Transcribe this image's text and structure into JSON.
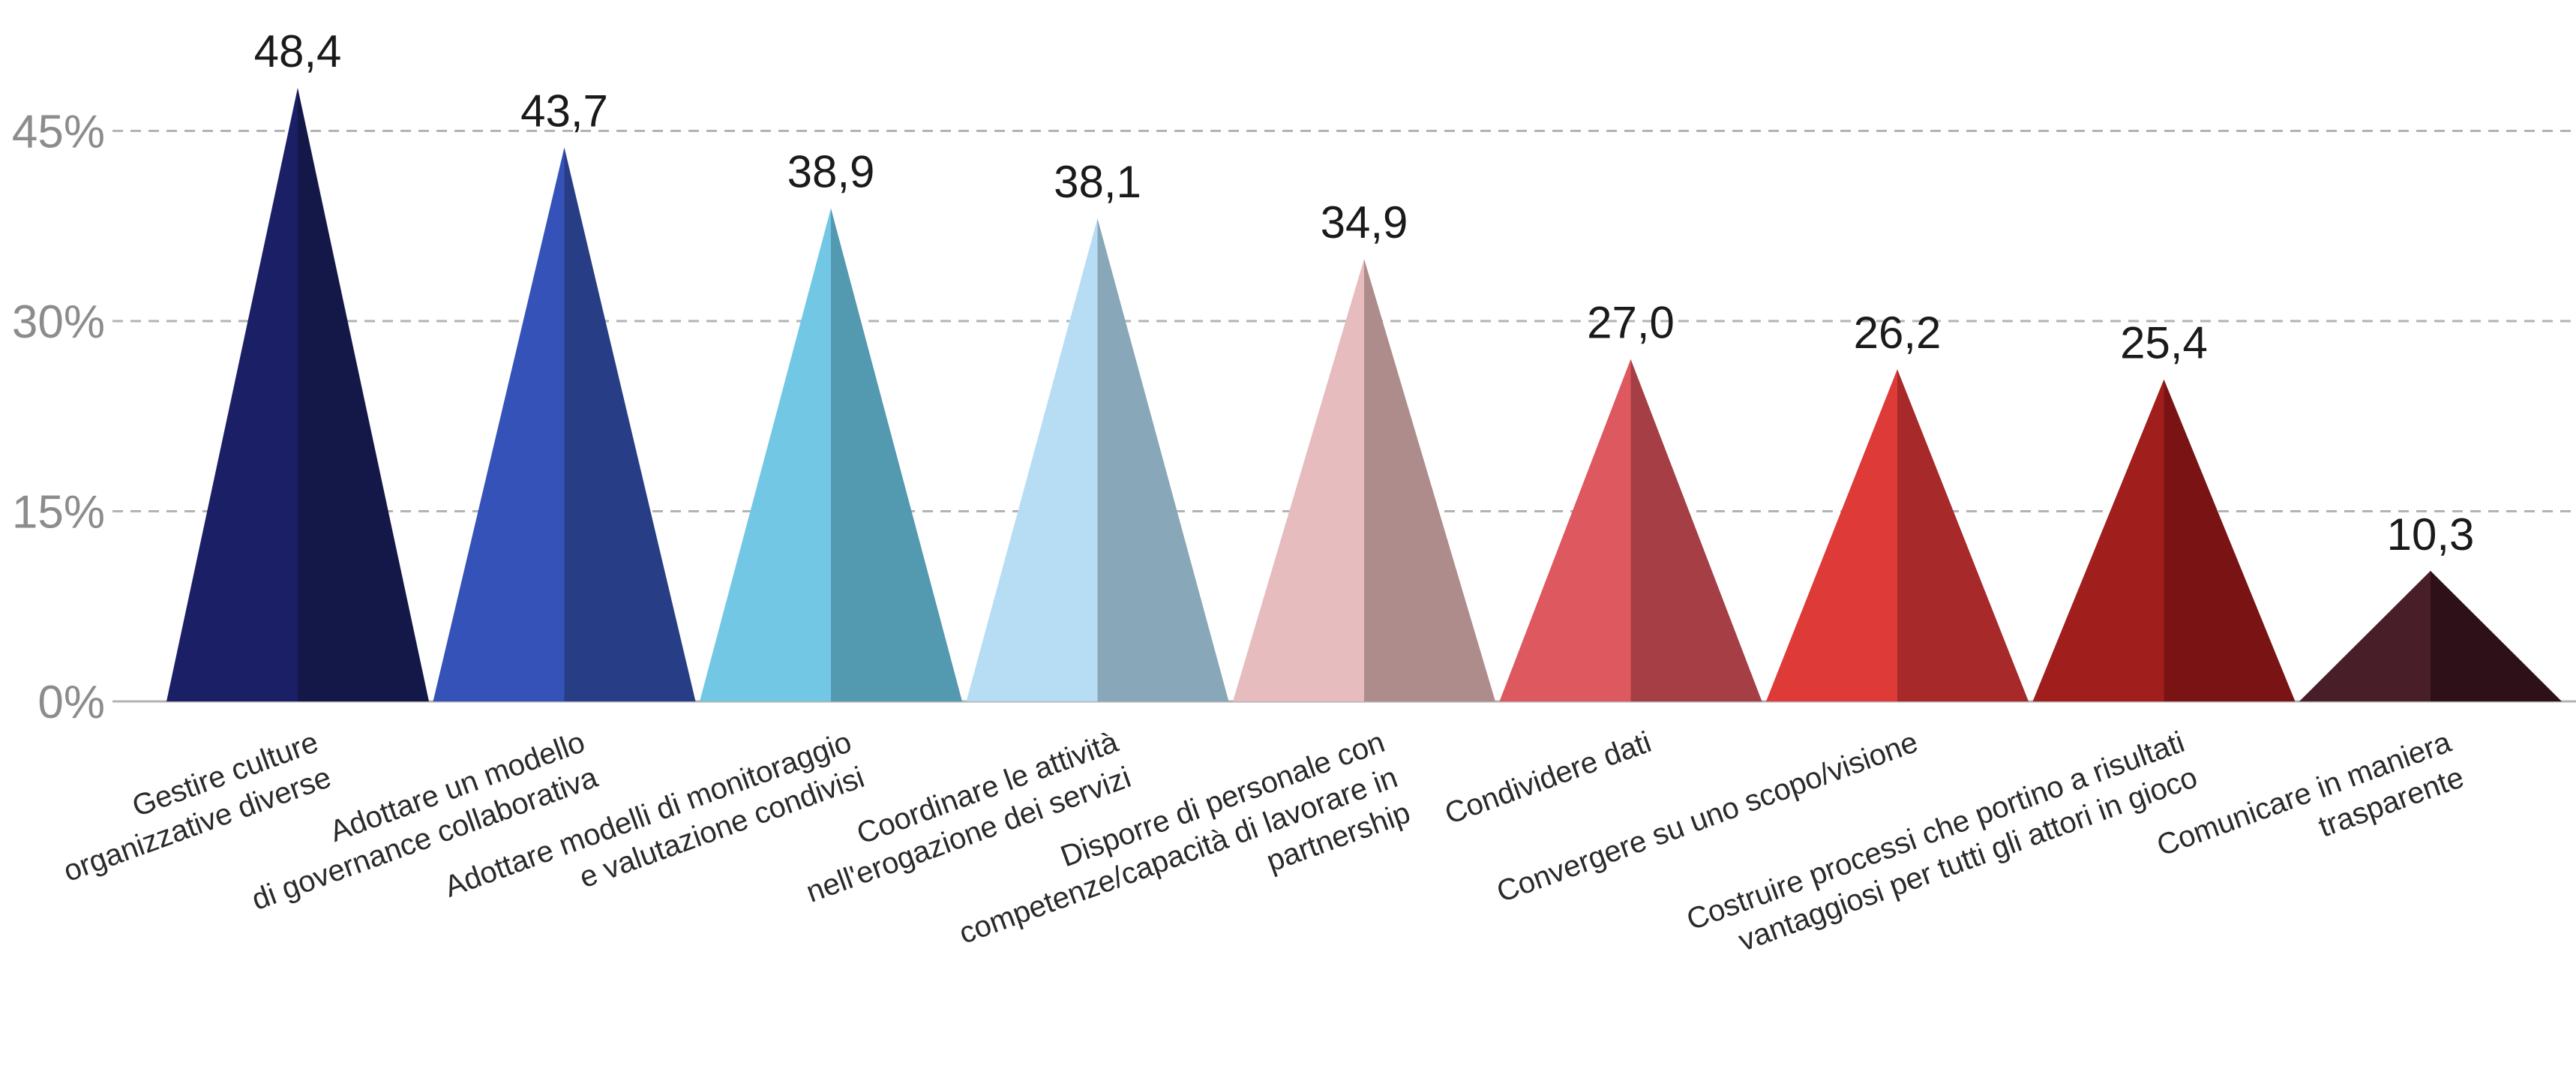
{
  "chart_data": {
    "type": "bar",
    "shape": "triangle",
    "categories": [
      [
        "Gestire culture",
        "organizzative diverse"
      ],
      [
        "Adottare un modello",
        "di governance collaborativa"
      ],
      [
        "Adottare modelli di monitoraggio",
        "e valutazione condivisi"
      ],
      [
        "Coordinare le attività",
        "nell'erogazione dei servizi"
      ],
      [
        "Disporre di personale con",
        "competenze/capacità di lavorare in",
        "partnership"
      ],
      [
        "Condividere dati"
      ],
      [
        "Convergere su uno scopo/visione"
      ],
      [
        "Costruire processi che portino a risultati",
        "vantaggiosi per tutti gli attori in gioco"
      ],
      [
        "Comunicare in maniera",
        "trasparente"
      ]
    ],
    "values": [
      48.4,
      43.7,
      38.9,
      38.1,
      34.9,
      27.0,
      26.2,
      25.4,
      10.3
    ],
    "value_labels": [
      "48,4",
      "43,7",
      "38,9",
      "38,1",
      "34,9",
      "27,0",
      "26,2",
      "25,4",
      "10,3"
    ],
    "colors": [
      [
        "#1b1f66",
        "#141848"
      ],
      [
        "#3552b8",
        "#273d86"
      ],
      [
        "#72c8e4",
        "#5399b0"
      ],
      [
        "#b7ddf4",
        "#88a8b9"
      ],
      [
        "#e6bcbe",
        "#ae8c8c"
      ],
      [
        "#de5860",
        "#a53f45"
      ],
      [
        "#dd3a38",
        "#a8292a"
      ],
      [
        "#a01e1c",
        "#7a1414"
      ],
      [
        "#481e28",
        "#2e1118"
      ]
    ],
    "yticks": [
      "0%",
      "15%",
      "30%",
      "45%"
    ],
    "ytick_values": [
      0,
      15,
      30,
      45
    ],
    "ylim": [
      0,
      48.4
    ],
    "grid": true,
    "legend": "none",
    "title": "",
    "xlabel": "",
    "ylabel": ""
  }
}
